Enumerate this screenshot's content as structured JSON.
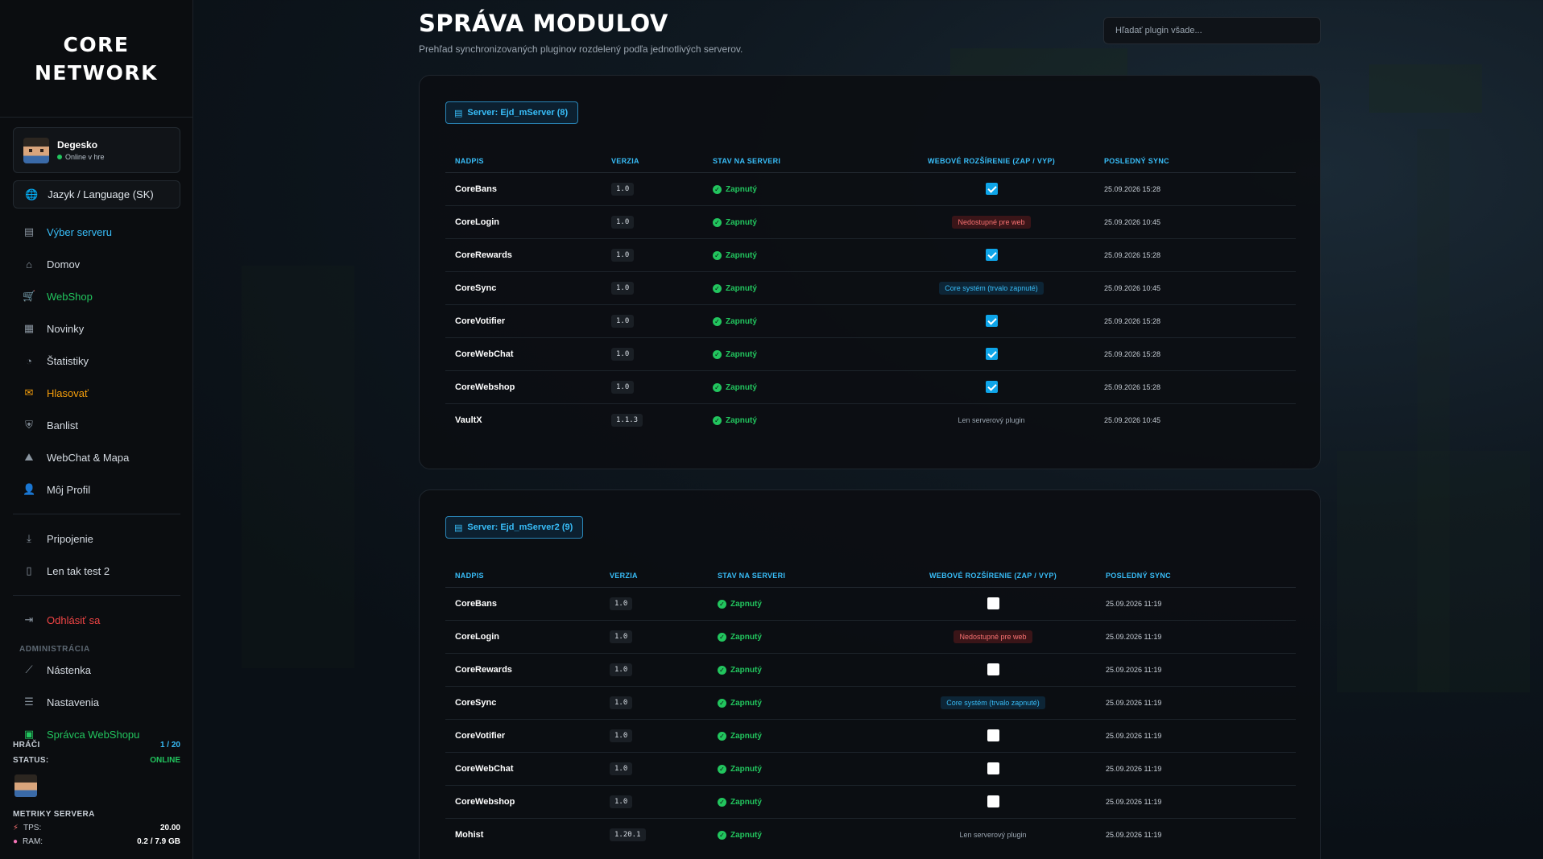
{
  "brand": {
    "line1": "CORE",
    "line2": "NETWORK"
  },
  "user": {
    "name": "Degesko",
    "status": "Online v hre"
  },
  "language": {
    "label": "Jazyk / Language (SK)"
  },
  "nav": [
    {
      "label": "Výber serveru",
      "icon": "server-icon"
    },
    {
      "label": "Domov",
      "icon": "home-icon"
    },
    {
      "label": "WebShop",
      "icon": "cart-icon"
    },
    {
      "label": "Novinky",
      "icon": "newspaper-icon"
    },
    {
      "label": "Štatistiky",
      "icon": "chart-pie-icon"
    },
    {
      "label": "Hlasovať",
      "icon": "vote-icon"
    },
    {
      "label": "Banlist",
      "icon": "shield-icon"
    },
    {
      "label": "WebChat & Mapa",
      "icon": "map-icon"
    },
    {
      "label": "Môj Profil",
      "icon": "user-icon"
    }
  ],
  "nav2": [
    {
      "label": "Pripojenie",
      "icon": "download-icon"
    },
    {
      "label": "Len tak test 2",
      "icon": "file-icon"
    }
  ],
  "logout": {
    "label": "Odhlásiť sa"
  },
  "admin": {
    "section": "ADMINISTRÁCIA",
    "items": [
      {
        "label": "Nástenka",
        "icon": "chart-line-icon"
      },
      {
        "label": "Nastavenia",
        "icon": "sliders-icon"
      },
      {
        "label": "Správca WebShopu",
        "icon": "shop-icon"
      }
    ]
  },
  "stats": {
    "players_label": "HRÁČI",
    "players_value": "1 / 20",
    "status_label": "STATUS:",
    "status_value": "ONLINE",
    "metrics_title": "METRIKY SERVERA",
    "tps_label": "TPS:",
    "tps_value": "20.00",
    "ram_label": "RAM:",
    "ram_value": "0.2 / 7.9 GB"
  },
  "page": {
    "title": "SPRÁVA MODULOV",
    "subtitle": "Prehľad synchronizovaných pluginov rozdelený podľa jednotlivých serverov.",
    "search_placeholder": "Hľadať plugin všade..."
  },
  "columns": {
    "name": "NADPIS",
    "version": "VERZIA",
    "state": "STAV NA SERVERI",
    "web": "WEBOVÉ ROZŠÍRENIE (ZAP / VYP)",
    "sync": "POSLEDNÝ SYNC"
  },
  "servers": [
    {
      "badge": "Server: Ejd_mServer (8)",
      "rows": [
        {
          "name": "CoreBans",
          "version": "1.0",
          "state": "Zapnutý",
          "web_type": "checkbox",
          "checked": true,
          "web_text": "",
          "sync": "25.09.2026 15:28"
        },
        {
          "name": "CoreLogin",
          "version": "1.0",
          "state": "Zapnutý",
          "web_type": "unavailable",
          "checked": false,
          "web_text": "Nedostupné pre web",
          "sync": "25.09.2026 10:45"
        },
        {
          "name": "CoreRewards",
          "version": "1.0",
          "state": "Zapnutý",
          "web_type": "checkbox",
          "checked": true,
          "web_text": "",
          "sync": "25.09.2026 15:28"
        },
        {
          "name": "CoreSync",
          "version": "1.0",
          "state": "Zapnutý",
          "web_type": "core",
          "checked": false,
          "web_text": "Core systém (trvalo zapnuté)",
          "sync": "25.09.2026 10:45"
        },
        {
          "name": "CoreVotifier",
          "version": "1.0",
          "state": "Zapnutý",
          "web_type": "checkbox",
          "checked": true,
          "web_text": "",
          "sync": "25.09.2026 15:28"
        },
        {
          "name": "CoreWebChat",
          "version": "1.0",
          "state": "Zapnutý",
          "web_type": "checkbox",
          "checked": true,
          "web_text": "",
          "sync": "25.09.2026 15:28"
        },
        {
          "name": "CoreWebshop",
          "version": "1.0",
          "state": "Zapnutý",
          "web_type": "checkbox",
          "checked": true,
          "web_text": "",
          "sync": "25.09.2026 15:28"
        },
        {
          "name": "VaultX",
          "version": "1.1.3",
          "state": "Zapnutý",
          "web_type": "server-only",
          "checked": false,
          "web_text": "Len serverový plugin",
          "sync": "25.09.2026 10:45"
        }
      ]
    },
    {
      "badge": "Server: Ejd_mServer2 (9)",
      "rows": [
        {
          "name": "CoreBans",
          "version": "1.0",
          "state": "Zapnutý",
          "web_type": "checkbox",
          "checked": false,
          "web_text": "",
          "sync": "25.09.2026 11:19"
        },
        {
          "name": "CoreLogin",
          "version": "1.0",
          "state": "Zapnutý",
          "web_type": "unavailable",
          "checked": false,
          "web_text": "Nedostupné pre web",
          "sync": "25.09.2026 11:19"
        },
        {
          "name": "CoreRewards",
          "version": "1.0",
          "state": "Zapnutý",
          "web_type": "checkbox",
          "checked": false,
          "web_text": "",
          "sync": "25.09.2026 11:19"
        },
        {
          "name": "CoreSync",
          "version": "1.0",
          "state": "Zapnutý",
          "web_type": "core",
          "checked": false,
          "web_text": "Core systém (trvalo zapnuté)",
          "sync": "25.09.2026 11:19"
        },
        {
          "name": "CoreVotifier",
          "version": "1.0",
          "state": "Zapnutý",
          "web_type": "checkbox",
          "checked": false,
          "web_text": "",
          "sync": "25.09.2026 11:19"
        },
        {
          "name": "CoreWebChat",
          "version": "1.0",
          "state": "Zapnutý",
          "web_type": "checkbox",
          "checked": false,
          "web_text": "",
          "sync": "25.09.2026 11:19"
        },
        {
          "name": "CoreWebshop",
          "version": "1.0",
          "state": "Zapnutý",
          "web_type": "checkbox",
          "checked": false,
          "web_text": "",
          "sync": "25.09.2026 11:19"
        },
        {
          "name": "Mohist",
          "version": "1.20.1",
          "state": "Zapnutý",
          "web_type": "server-only",
          "checked": false,
          "web_text": "Len serverový plugin",
          "sync": "25.09.2026 11:19"
        }
      ]
    }
  ],
  "colors": {
    "accent": "#38bdf8",
    "success": "#22c55e",
    "warning": "#f59e0b",
    "danger": "#ef4444"
  }
}
